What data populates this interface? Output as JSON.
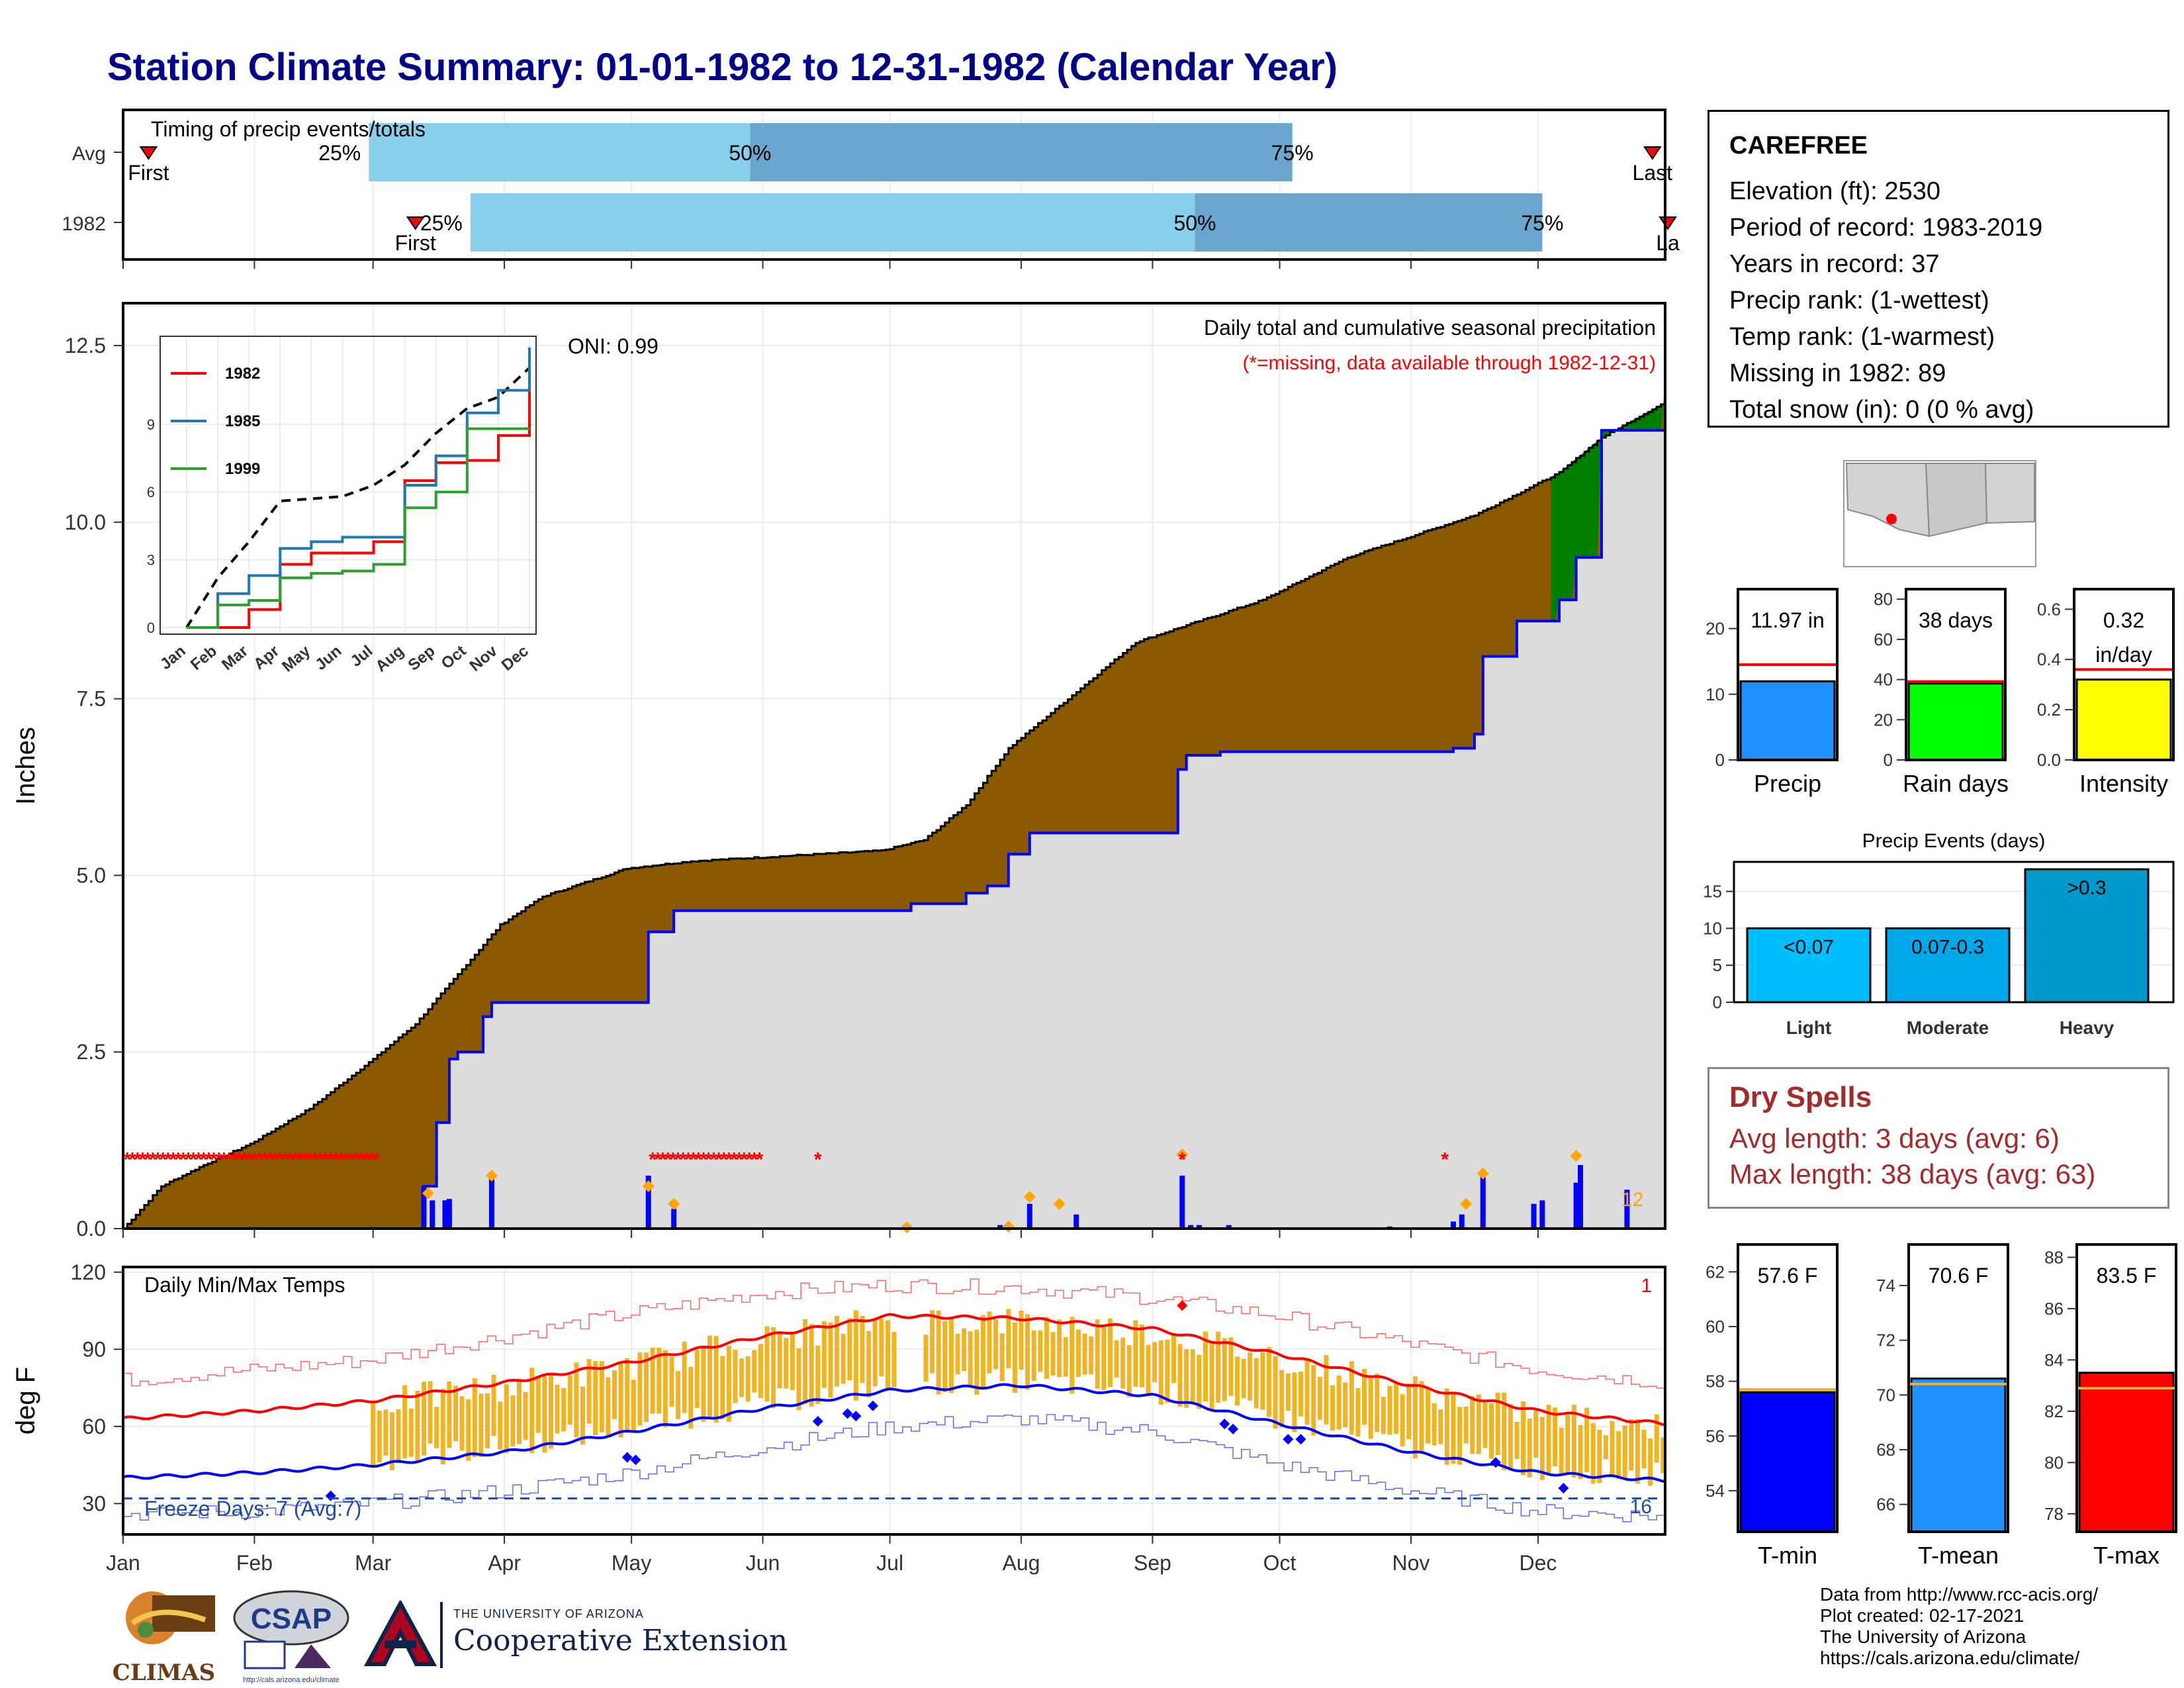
{
  "title": "Station Climate Summary: 01-01-1982 to 12-31-1982 (Calendar Year)",
  "colors": {
    "title": "#00008b",
    "cum_avg_fill": "#8b5a00",
    "cum_year_line": "#0000ff",
    "surplus_fill": "#008000",
    "missing": "#ff0000",
    "timing_light": "#87ceeb",
    "timing_dark": "#6aa6cd",
    "temp_bar": "#f0b323",
    "tmax_normal": "#ff0000",
    "tmin_normal": "#0000ff",
    "freeze_line": "#1f4e9e",
    "dry_spell_text": "#a52a2a"
  },
  "timing": {
    "header": "Timing of precip events/totals",
    "rows": [
      {
        "label": "Avg",
        "first_doy": 7,
        "p25_doy": 59,
        "p50_doy": 149,
        "p75_doy": 277,
        "last_doy": 362,
        "first_label": "First",
        "last_label": "Last",
        "p25_label": "25%",
        "p50_label": "50%",
        "p75_label": "75%"
      },
      {
        "label": "1982",
        "first_doy": 70,
        "p25_doy": 83,
        "p50_doy": 254,
        "p75_doy": 336,
        "last_doy": 367,
        "first_label": "First",
        "last_label": "La",
        "p25_label": "25%",
        "p50_label": "50%",
        "p75_label": "75%"
      }
    ]
  },
  "precip_panel": {
    "ylabel": "Inches",
    "y_ticks": [
      "0.0",
      "2.5",
      "5.0",
      "7.5",
      "10.0",
      "12.5"
    ],
    "oni": "ONI: 0.99",
    "caption1": "Daily total and cumulative seasonal precipitation",
    "caption2": "(*=missing, data available through 1982-12-31)",
    "count_label": "12",
    "ylim": [
      0,
      13
    ]
  },
  "chart_data": [
    {
      "type": "area",
      "title": "Daily total and cumulative seasonal precipitation",
      "ylabel": "Inches",
      "ylim": [
        0,
        13
      ],
      "series": [
        {
          "name": "Avg cumulative",
          "x_doy": [
            1,
            10,
            20,
            31,
            45,
            60,
            70,
            80,
            90,
            100,
            110,
            120,
            135,
            150,
            165,
            180,
            190,
            200,
            210,
            220,
            230,
            240,
            250,
            260,
            270,
            280,
            290,
            300,
            310,
            320,
            330,
            340,
            350,
            365
          ],
          "values": [
            0.0,
            0.6,
            0.9,
            1.2,
            1.7,
            2.4,
            2.9,
            3.6,
            4.3,
            4.7,
            4.9,
            5.1,
            5.2,
            5.25,
            5.3,
            5.35,
            5.5,
            6.0,
            6.8,
            7.3,
            7.8,
            8.3,
            8.5,
            8.7,
            8.9,
            9.2,
            9.5,
            9.7,
            9.9,
            10.1,
            10.4,
            10.7,
            11.2,
            11.7
          ]
        },
        {
          "name": "1982 cumulative",
          "x_doy": [
            1,
            71,
            72,
            75,
            78,
            80,
            86,
            88,
            124,
            125,
            131,
            132,
            150,
            160,
            182,
            187,
            200,
            205,
            210,
            215,
            245,
            250,
            252,
            260,
            265,
            270,
            300,
            315,
            320,
            322,
            330,
            340,
            344,
            350,
            365
          ],
          "values": [
            0.0,
            0.0,
            0.6,
            1.5,
            2.4,
            2.5,
            3.0,
            3.2,
            3.2,
            4.2,
            4.5,
            4.5,
            4.5,
            4.5,
            4.5,
            4.6,
            4.75,
            4.85,
            5.3,
            5.6,
            5.6,
            6.5,
            6.7,
            6.75,
            6.75,
            6.75,
            6.75,
            6.8,
            7.0,
            8.1,
            8.6,
            8.9,
            9.5,
            11.3,
            11.97
          ]
        }
      ]
    },
    {
      "type": "line",
      "title": "",
      "categories": [
        "Jan",
        "Feb",
        "Mar",
        "Apr",
        "May",
        "Jun",
        "Jul",
        "Aug",
        "Sep",
        "Oct",
        "Nov",
        "Dec"
      ],
      "y_ticks": [
        0,
        3,
        6,
        9
      ],
      "series": [
        {
          "name": "1982",
          "values": [
            0.0,
            0.0,
            0.8,
            2.8,
            3.3,
            3.3,
            3.8,
            6.5,
            7.3,
            7.4,
            8.5,
            12.0
          ]
        },
        {
          "name": "1985",
          "values": [
            0.0,
            1.5,
            2.3,
            3.5,
            3.8,
            4.0,
            4.0,
            6.3,
            7.6,
            9.5,
            10.5,
            12.4
          ]
        },
        {
          "name": "1999",
          "values": [
            0.0,
            1.0,
            1.2,
            2.2,
            2.4,
            2.5,
            2.8,
            5.3,
            6.0,
            8.8,
            8.8,
            8.8
          ]
        }
      ]
    },
    {
      "type": "bar",
      "title": "",
      "categories": [
        "Precip"
      ],
      "values": [
        11.97
      ],
      "y_ticks": [
        0,
        10,
        20
      ],
      "normal": 14.5,
      "value_label": "11.97 in"
    },
    {
      "type": "bar",
      "title": "",
      "categories": [
        "Rain days"
      ],
      "values": [
        38
      ],
      "y_ticks": [
        0,
        20,
        40,
        60,
        80
      ],
      "normal": 39,
      "value_label": "38 days"
    },
    {
      "type": "bar",
      "title": "",
      "categories": [
        "Intensity"
      ],
      "values": [
        0.32
      ],
      "y_ticks": [
        0.0,
        0.2,
        0.4,
        0.6
      ],
      "normal": 0.36,
      "value_label": "0.32 in/day"
    },
    {
      "type": "bar",
      "title": "Precip Events (days)",
      "categories": [
        "Light",
        "Moderate",
        "Heavy"
      ],
      "bar_labels": [
        "<0.07",
        "0.07-0.3",
        ">0.3"
      ],
      "values": [
        10,
        10,
        18
      ],
      "y_ticks": [
        0,
        5,
        10,
        15
      ]
    },
    {
      "type": "line",
      "title": "Daily Min/Max Temps",
      "ylabel": "deg F",
      "y_ticks": [
        30,
        60,
        90,
        120
      ],
      "x_ticks": [
        "Jan",
        "Feb",
        "Mar",
        "Apr",
        "May",
        "Jun",
        "Jul",
        "Aug",
        "Sep",
        "Oct",
        "Nov",
        "Dec"
      ],
      "series": [
        {
          "name": "Normal Tmax",
          "x_doy": [
            1,
            32,
            60,
            91,
            121,
            152,
            182,
            213,
            244,
            274,
            305,
            335,
            365
          ],
          "values": [
            63,
            66,
            70,
            77,
            85,
            95,
            103,
            102,
            98,
            88,
            76,
            66,
            61
          ]
        },
        {
          "name": "Normal Tmin",
          "x_doy": [
            1,
            32,
            60,
            91,
            121,
            152,
            182,
            213,
            244,
            274,
            305,
            335,
            365
          ],
          "values": [
            40,
            42,
            45,
            50,
            58,
            67,
            74,
            76,
            72,
            61,
            50,
            42,
            39
          ]
        },
        {
          "name": "Record high",
          "x_doy": [
            1,
            32,
            60,
            91,
            121,
            152,
            182,
            213,
            244,
            274,
            305,
            335,
            365
          ],
          "values": [
            78,
            82,
            86,
            95,
            104,
            112,
            115,
            114,
            110,
            103,
            92,
            82,
            77
          ]
        },
        {
          "name": "Record low",
          "x_doy": [
            1,
            32,
            60,
            91,
            121,
            152,
            182,
            213,
            244,
            274,
            305,
            335,
            365
          ],
          "values": [
            26,
            27,
            30,
            35,
            42,
            52,
            60,
            63,
            58,
            45,
            35,
            27,
            25
          ]
        }
      ],
      "freeze_level": 32,
      "freeze_label": "Freeze Days: 7 (Avg:7)",
      "right_top_label": "1",
      "right_bottom_label": "16"
    },
    {
      "type": "bar",
      "categories": [
        "T-min"
      ],
      "values": [
        57.6
      ],
      "normal": 57.7,
      "value_label": "57.6 F",
      "y_ticks": [
        54,
        56,
        58,
        60,
        62
      ],
      "ylim": [
        52.5,
        63
      ]
    },
    {
      "type": "bar",
      "categories": [
        "T-mean"
      ],
      "values": [
        70.6
      ],
      "normal": 70.4,
      "value_label": "70.6 F",
      "y_ticks": [
        66,
        68,
        70,
        72,
        74
      ],
      "ylim": [
        65,
        75.5
      ]
    },
    {
      "type": "bar",
      "categories": [
        "T-max"
      ],
      "values": [
        83.5
      ],
      "normal": 82.9,
      "value_label": "83.5 F",
      "y_ticks": [
        78,
        80,
        82,
        84,
        86,
        88
      ],
      "ylim": [
        77.3,
        88.5
      ]
    }
  ],
  "x_axis_months": [
    "Jan",
    "Feb",
    "Mar",
    "Apr",
    "May",
    "Jun",
    "Jul",
    "Aug",
    "Sep",
    "Oct",
    "Nov",
    "Dec"
  ],
  "inset_months": [
    "Jan",
    "Feb",
    "Mar",
    "Apr",
    "May",
    "Jun",
    "Jul",
    "Aug",
    "Sep",
    "Oct",
    "Nov",
    "Dec"
  ],
  "inset_legend": [
    "1982",
    "1985",
    "1999"
  ],
  "inset_legend_colors": [
    "#ff0000",
    "#1f77b4",
    "#2ca02c"
  ],
  "station": {
    "name": "CAREFREE",
    "lines": [
      "Elevation (ft): 2530",
      "Period of record: 1983-2019",
      "Years in record: 37",
      "Precip rank:  (1-wettest)",
      "Temp rank:  (1-warmest)",
      "Missing in 1982: 89",
      "Total snow (in): 0 (0 % avg)"
    ]
  },
  "dry_spells": {
    "title": "Dry Spells",
    "avg": "Avg length: 3 days (avg: 6)",
    "max": "Max length: 38 days (avg: 63)"
  },
  "credits": [
    "Data from http://www.rcc-acis.org/",
    "Plot created: 02-17-2021",
    "The University of Arizona",
    "https://cals.arizona.edu/climate/"
  ],
  "logos": {
    "climas": "CLIMAS",
    "csap": "CSAP",
    "csap_url": "http://cals.arizona.edu/climate",
    "ua_small": "THE UNIVERSITY OF ARIZONA",
    "ua_big": "Cooperative Extension"
  }
}
